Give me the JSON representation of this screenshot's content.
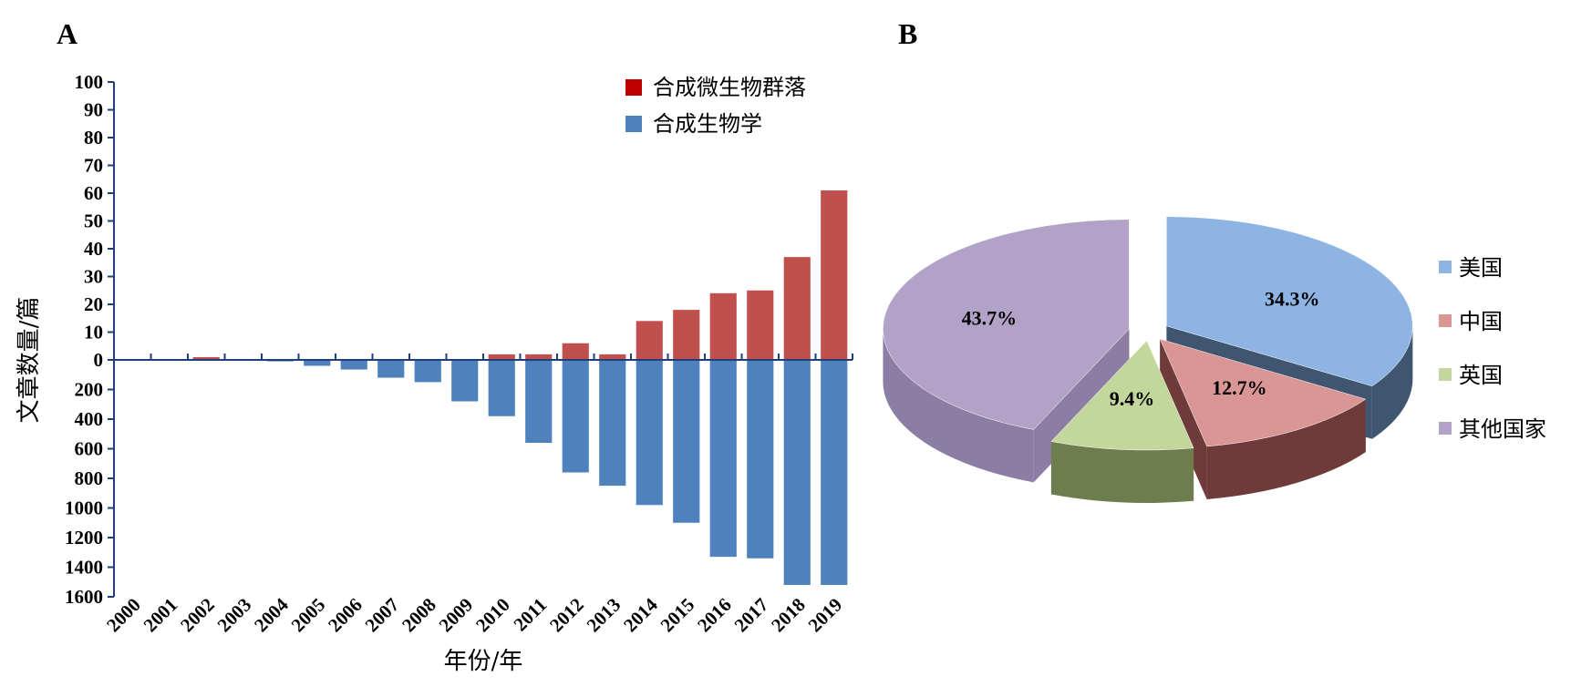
{
  "panels": {
    "a_label": "A",
    "b_label": "B"
  },
  "chart_data": [
    {
      "type": "bar",
      "categories": [
        "2000",
        "2001",
        "2002",
        "2003",
        "2004",
        "2005",
        "2006",
        "2007",
        "2008",
        "2009",
        "2010",
        "2011",
        "2012",
        "2013",
        "2014",
        "2015",
        "2016",
        "2017",
        "2018",
        "2019"
      ],
      "series": [
        {
          "name": "合成微生物群落",
          "color": "#c0504d",
          "direction": "up",
          "values": [
            0,
            0,
            1,
            0,
            0,
            0,
            0,
            0,
            0,
            0,
            2,
            2,
            6,
            2,
            14,
            18,
            24,
            25,
            37,
            61
          ]
        },
        {
          "name": "合成生物学",
          "color": "#4f81bd",
          "direction": "down",
          "values": [
            0,
            0,
            0,
            0,
            10,
            40,
            65,
            120,
            150,
            280,
            380,
            560,
            760,
            850,
            980,
            1100,
            1330,
            1340,
            1520,
            1520
          ]
        }
      ],
      "upper_axis": {
        "ticks": [
          "100",
          "90",
          "80",
          "70",
          "60",
          "50",
          "40",
          "30",
          "20",
          "10",
          "0"
        ],
        "range": [
          0,
          100
        ]
      },
      "lower_axis": {
        "ticks": [
          "200",
          "400",
          "600",
          "800",
          "1000",
          "1200",
          "1400",
          "1600"
        ],
        "range": [
          0,
          1600
        ]
      },
      "xlabel": "年份/年",
      "ylabel": "文章数量/篇",
      "legend_position": "top-right"
    },
    {
      "type": "pie",
      "style": "3d-exploded",
      "slices": [
        {
          "name": "美国",
          "value": 34.3,
          "label": "34.3%",
          "color": "#8eb4e3",
          "side": "#3f5570"
        },
        {
          "name": "中国",
          "value": 12.7,
          "label": "12.7%",
          "color": "#da9694",
          "side": "#6e3a3a"
        },
        {
          "name": "英国",
          "value": 9.4,
          "label": "9.4%",
          "color": "#c3d69b",
          "side": "#6d7d4e"
        },
        {
          "name": "其他国家",
          "value": 43.7,
          "label": "43.7%",
          "color": "#b3a2c7",
          "side": "#8b7da3"
        }
      ],
      "legend_position": "right"
    }
  ]
}
